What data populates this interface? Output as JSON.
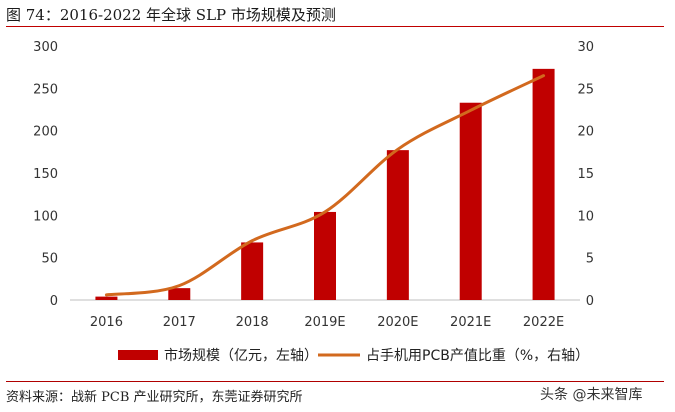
{
  "figure": {
    "title": "图 74：2016-2022 年全球 SLP 市场规模及预测",
    "source": "资料来源：战新 PCB 产业研究所，东莞证券研究所",
    "watermark": "头条 @未来智库"
  },
  "colors": {
    "bar": "#c00000",
    "line": "#d2691e",
    "rule": "#c00000"
  },
  "chart_data": {
    "type": "bar",
    "categories": [
      "2016",
      "2017",
      "2018",
      "2019E",
      "2020E",
      "2021E",
      "2022E"
    ],
    "series": [
      {
        "name": "市场规模（亿元，左轴）",
        "type": "bar",
        "axis": "left",
        "values": [
          4,
          14,
          68,
          104,
          177,
          233,
          273
        ]
      },
      {
        "name": "占手机用PCB产值比重（%，右轴）",
        "type": "line",
        "axis": "right",
        "values": [
          0.6,
          1.7,
          7.0,
          10.4,
          17.8,
          22.4,
          26.5
        ]
      }
    ],
    "ylim_left": [
      0,
      300
    ],
    "ylim_right": [
      0,
      30
    ],
    "left_ticks": [
      "0",
      "50",
      "100",
      "150",
      "200",
      "250",
      "300"
    ],
    "right_ticks": [
      "0",
      "5",
      "10",
      "15",
      "20",
      "25",
      "30"
    ],
    "legend_position": "bottom",
    "grid": false
  }
}
